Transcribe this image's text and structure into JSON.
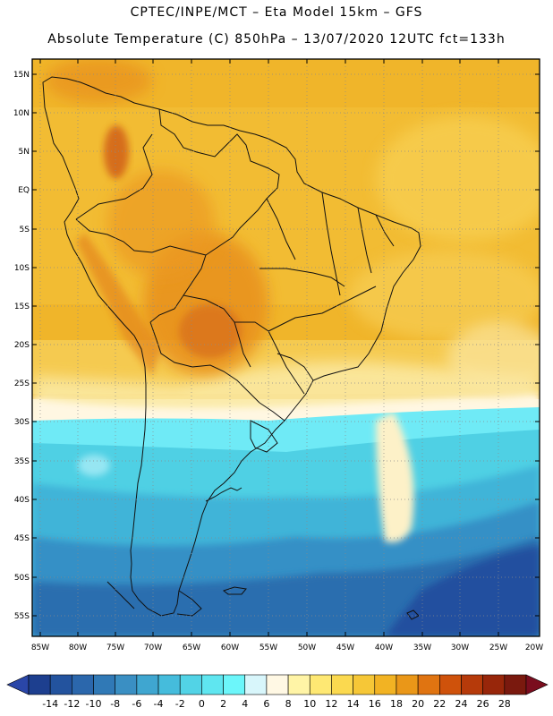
{
  "header": {
    "line1": "CPTEC/INPE/MCT –  Eta Model 15km – GFS",
    "line2": "Absolute Temperature (C) 850hPa – 13/07/2020 12UTC fct=133h"
  },
  "axes": {
    "lat_labels": [
      "15N",
      "10N",
      "5N",
      "EQ",
      "5S",
      "10S",
      "15S",
      "20S",
      "25S",
      "30S",
      "35S",
      "40S",
      "45S",
      "50S",
      "55S"
    ],
    "lon_labels": [
      "85W",
      "80W",
      "75W",
      "70W",
      "65W",
      "60W",
      "55W",
      "50W",
      "45W",
      "40W",
      "35W",
      "30W",
      "25W",
      "20W"
    ]
  },
  "colorbar": {
    "labels": [
      "-14",
      "-12",
      "-10",
      "-8",
      "-6",
      "-4",
      "-2",
      "0",
      "2",
      "4",
      "6",
      "8",
      "10",
      "12",
      "14",
      "16",
      "18",
      "20",
      "22",
      "24",
      "26",
      "28"
    ],
    "colors": [
      "#1d3f8f",
      "#23539e",
      "#2b67ac",
      "#3079b6",
      "#3a8fc3",
      "#3fa6d0",
      "#45bcdc",
      "#52d3e6",
      "#5fe6f0",
      "#6cf6fa",
      "#d8f6fb",
      "#fff8e4",
      "#fff4a6",
      "#fee873",
      "#fbd94f",
      "#f6c737",
      "#f2b323",
      "#ea9718",
      "#e07411",
      "#cf520b",
      "#b63a0a",
      "#98260a",
      "#7a190e"
    ],
    "under_color": "#2a46a8",
    "over_color": "#7a0d1e"
  }
}
